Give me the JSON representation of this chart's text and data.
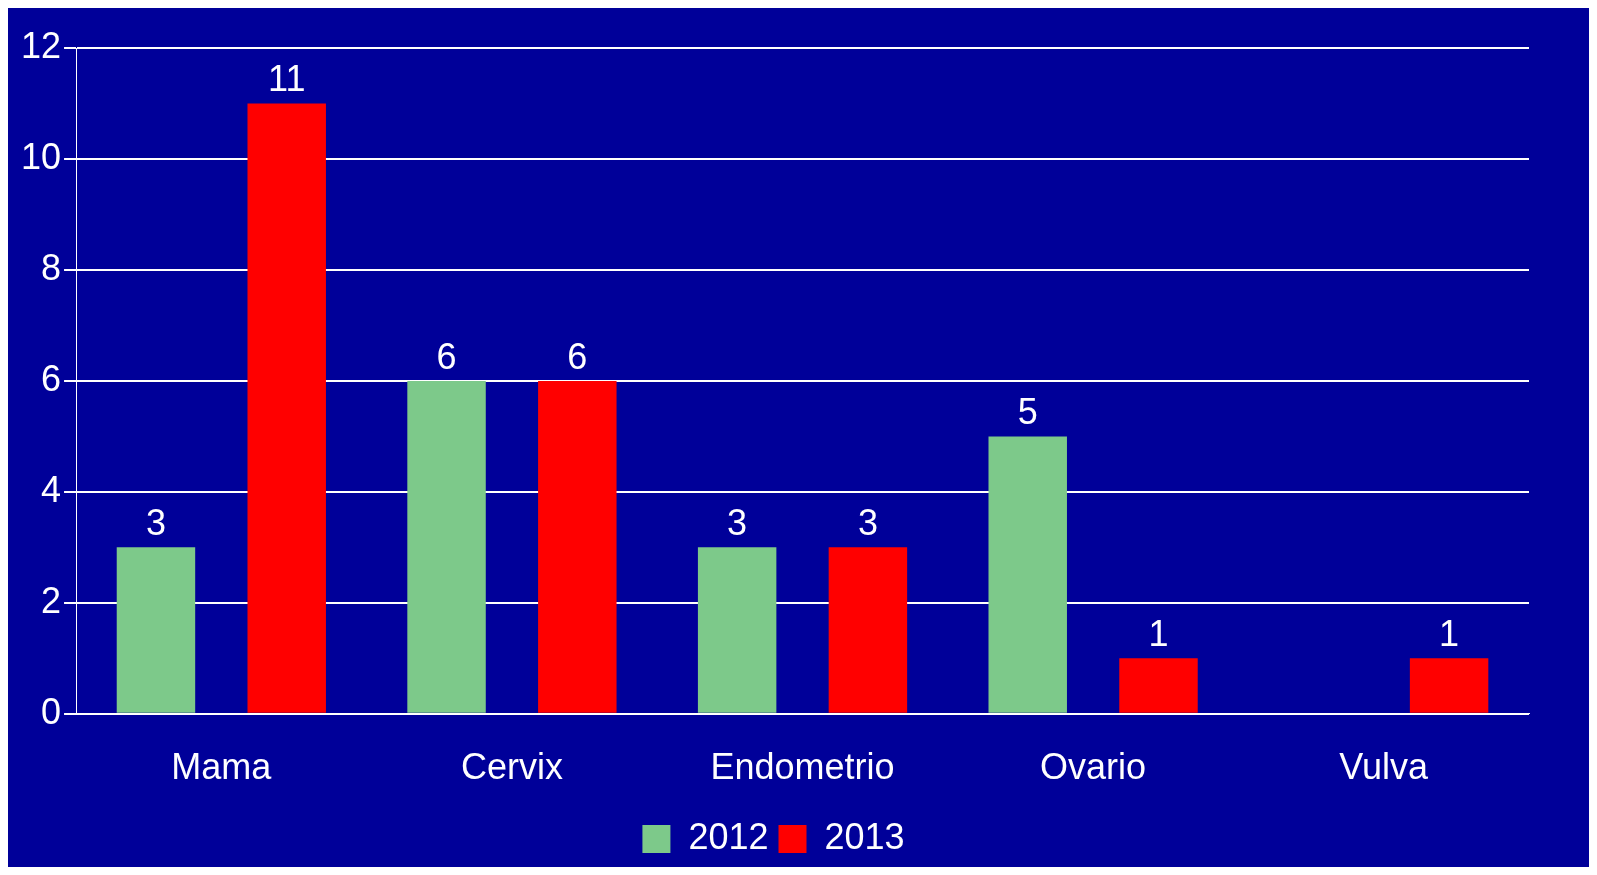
{
  "chart_data": {
    "type": "bar",
    "categories": [
      "Mama",
      "Cervix",
      "Endometrio",
      "Ovario",
      "Vulva"
    ],
    "series": [
      {
        "name": "2012",
        "color": "#7dc98a",
        "values": [
          3,
          6,
          3,
          5,
          null
        ]
      },
      {
        "name": "2013",
        "color": "#ff0000",
        "values": [
          11,
          6,
          3,
          1,
          1
        ]
      }
    ],
    "ylim": [
      0,
      12
    ],
    "yticks": [
      0,
      2,
      4,
      6,
      8,
      10,
      12
    ],
    "grid": "y",
    "legend": "bottom",
    "data_labels": true
  }
}
